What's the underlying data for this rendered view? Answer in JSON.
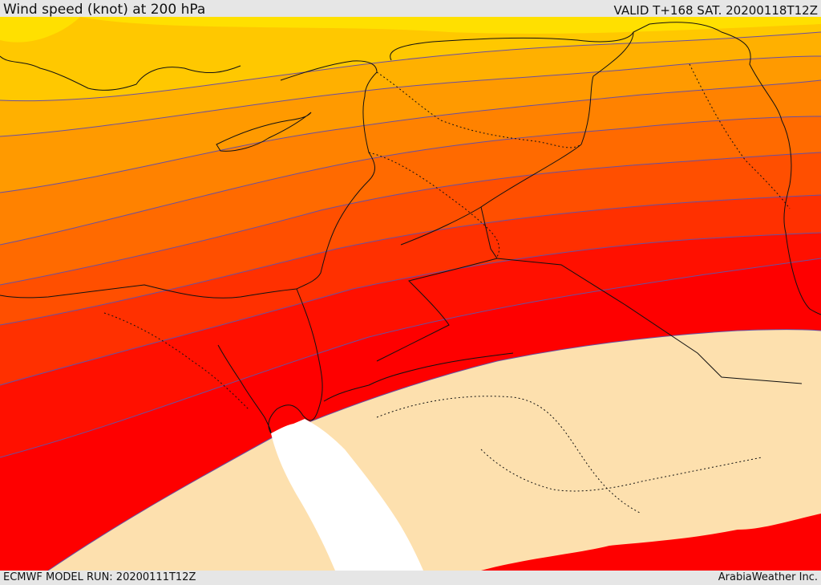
{
  "header": {
    "title": "Wind speed (knot) at 200 hPa",
    "valid_time": "VALID T+168 SAT. 20200118T12Z"
  },
  "footer": {
    "model_run": "ECMWF MODEL RUN: 20200111T12Z",
    "credit": "ArabiaWeather Inc."
  },
  "map": {
    "band_colors": [
      "#ffff00",
      "#ffe000",
      "#ffc800",
      "#ffb000",
      "#ff9a00",
      "#ff8200",
      "#ff6a00",
      "#ff4f00",
      "#ff3000",
      "#ff1000",
      "#fe0000"
    ],
    "land_color": "#fde0ae",
    "sea_color": "#ffffff",
    "contour_color": "#6a4fa0",
    "coast_color": "#111111"
  }
}
